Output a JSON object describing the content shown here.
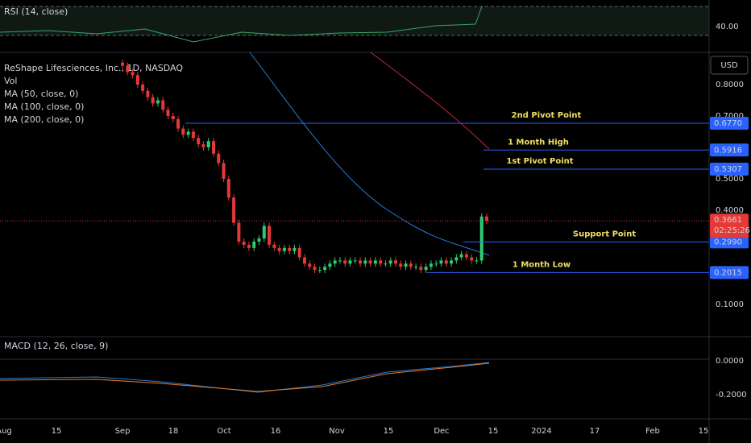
{
  "rsi_pane": {
    "title": "RSI (14, close)",
    "tick": {
      "value": 40,
      "label": "40.00"
    }
  },
  "main_pane": {
    "title": "ReShape Lifesciences, Inc., 1D, NASDAQ",
    "legend": [
      "Vol",
      "MA (50, close, 0)",
      "MA (100, close, 0)",
      "MA (200, close, 0)"
    ],
    "currency": "USD",
    "price_ticks": [
      {
        "value": 0.8,
        "label": "0.8000"
      },
      {
        "value": 0.7,
        "label": "0.7000"
      },
      {
        "value": 0.5,
        "label": "0.5000"
      },
      {
        "value": 0.4,
        "label": "0.4000"
      },
      {
        "value": 0.1,
        "label": "0.1000"
      }
    ],
    "levels": [
      {
        "name": "2nd Pivot Point",
        "value": 0.677,
        "label": "0.6770"
      },
      {
        "name": "1 Month High",
        "value": 0.5916,
        "label": "0.5916"
      },
      {
        "name": "1st Pivot Point",
        "value": 0.5307,
        "label": "0.5307"
      },
      {
        "name": "Support Point",
        "value": 0.299,
        "label": "0.2990"
      },
      {
        "name": "1 Month Low",
        "value": 0.2015,
        "label": "0.2015"
      }
    ],
    "last_price": {
      "value": 0.3661,
      "label": "0.3661",
      "countdown": "02:25:26"
    },
    "closes": [
      0.86,
      0.84,
      0.83,
      0.8,
      0.78,
      0.76,
      0.74,
      0.75,
      0.72,
      0.7,
      0.69,
      0.66,
      0.64,
      0.65,
      0.63,
      0.61,
      0.6,
      0.62,
      0.58,
      0.55,
      0.5,
      0.44,
      0.36,
      0.3,
      0.29,
      0.28,
      0.3,
      0.31,
      0.35,
      0.29,
      0.28,
      0.27,
      0.28,
      0.27,
      0.28,
      0.25,
      0.23,
      0.22,
      0.21,
      0.21,
      0.22,
      0.23,
      0.24,
      0.24,
      0.23,
      0.24,
      0.24,
      0.23,
      0.24,
      0.23,
      0.24,
      0.23,
      0.23,
      0.24,
      0.23,
      0.22,
      0.23,
      0.22,
      0.22,
      0.21,
      0.22,
      0.23,
      0.23,
      0.24,
      0.23,
      0.24,
      0.25,
      0.26,
      0.25,
      0.24,
      0.24,
      0.38,
      0.366
    ]
  },
  "macd_pane": {
    "title": "MACD (12, 26, close, 9)",
    "ticks": [
      {
        "value": 0,
        "label": "0.0000"
      },
      {
        "value": -0.2,
        "label": "-0.2000"
      }
    ]
  },
  "time_axis": [
    "Aug",
    "15",
    "Sep",
    "18",
    "Oct",
    "16",
    "Nov",
    "15",
    "Dec",
    "15",
    "2024",
    "17",
    "Feb",
    "15"
  ]
}
